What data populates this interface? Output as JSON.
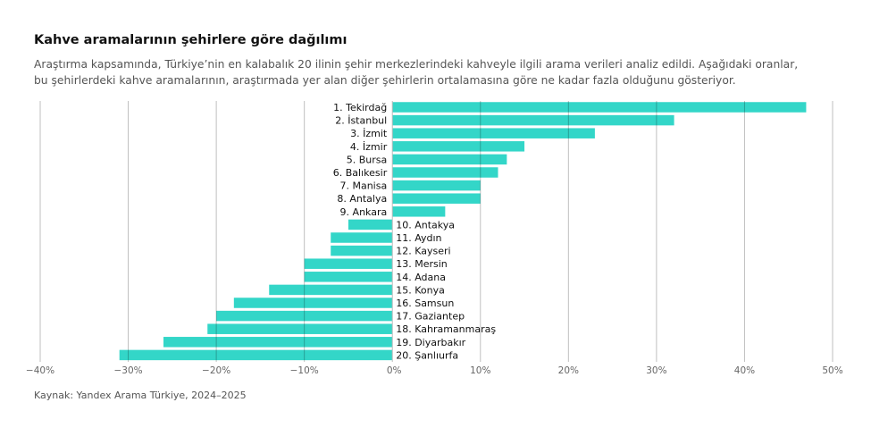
{
  "title": "Kahve aramalarının şehirlere göre dağılımı",
  "subtitle_lines": [
    "Araştırma kapsamında, Türkiye’nin en kalabalık 20 ilinin şehir merkezlerindeki kahveyle ilgili arama verileri analiz edildi.  Aşağıdaki oranlar,",
    "bu şehirlerdeki kahve aramalarının, araştırmada yer alan diğer şehirlerin ortalamasına göre ne kadar fazla olduğunu gösteriyor."
  ],
  "source": "Kaynak: Yandex Arama Türkiye, 2024–2025",
  "chart_data": {
    "type": "bar",
    "orientation": "horizontal",
    "categories": [
      "1. Tekirdağ",
      "2. İstanbul",
      "3. İzmit",
      "4. İzmir",
      "5. Bursa",
      "6. Balıkesir",
      "7. Manisa",
      "8. Antalya",
      "9. Ankara",
      "10. Antakya",
      "11. Aydın",
      "12. Kayseri",
      "13. Mersin",
      "14. Adana",
      "15. Konya",
      "16. Samsun",
      "17. Gaziantep",
      "18. Kahramanmaraş",
      "19. Diyarbakır",
      "20. Şanlıurfa"
    ],
    "values": [
      47,
      32,
      23,
      15,
      13,
      12,
      10,
      10,
      6,
      -5,
      -7,
      -7,
      -10,
      -10,
      -14,
      -18,
      -20,
      -21,
      -26,
      -31
    ],
    "xlim": [
      -40,
      50
    ],
    "xticks": [
      -40,
      -30,
      -20,
      -10,
      0,
      10,
      20,
      30,
      40,
      50
    ],
    "xtick_labels": [
      "−40%",
      "−30%",
      "−20%",
      "−10%",
      "0%",
      "10%",
      "20%",
      "30%",
      "40%",
      "50%"
    ],
    "grid": "vertical",
    "bar_color": "#33d6c8"
  }
}
